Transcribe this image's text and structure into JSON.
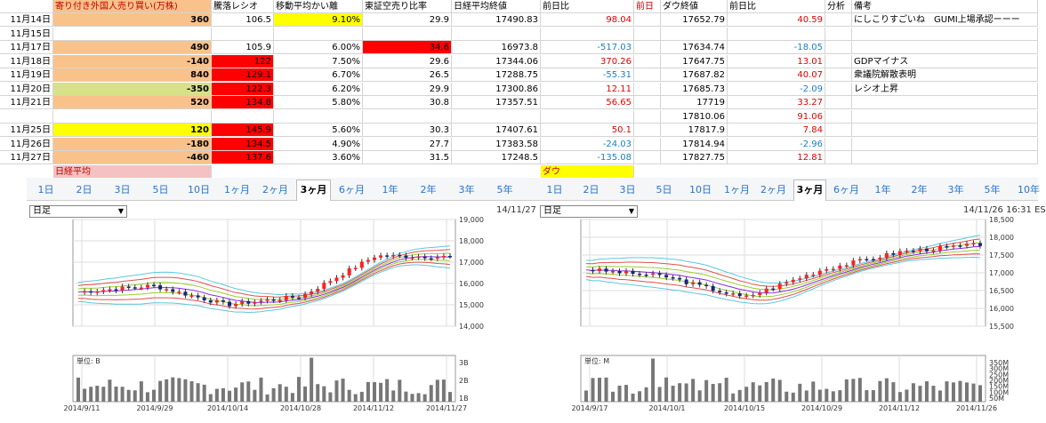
{
  "sheet": {
    "headers": {
      "col_a": "",
      "foreign": "寄り付き外国人売り買い(万株)",
      "ratio": "騰落レシオ",
      "ma": "移動平均かい離",
      "short": "東証空売り比率",
      "nikkei": "日経平均終値",
      "nikkei_diff": "前日比",
      "prev": "前日",
      "dow": "ダウ終値",
      "dow_diff": "前日比",
      "analysis": "分析",
      "notes": "備考"
    },
    "rows": [
      {
        "date": "11月14日",
        "foreign": "360",
        "ratio": "106.5",
        "ma": "9.10%",
        "short": "29.9",
        "nikkei": "17490.83",
        "nd": "98.04",
        "dow": "17652.79",
        "dd": "40.59",
        "note": "にしこりすごいね　GUMI上場承認ーーー"
      },
      {
        "date": "11月15日",
        "foreign": "",
        "ratio": "",
        "ma": "",
        "short": "",
        "nikkei": "",
        "nd": "",
        "dow": "",
        "dd": "",
        "note": ""
      },
      {
        "date": "11月17日",
        "foreign": "490",
        "ratio": "105.9",
        "ma": "6.00%",
        "short": "34.6",
        "nikkei": "16973.8",
        "nd": "-517.03",
        "dow": "17634.74",
        "dd": "-18.05",
        "note": ""
      },
      {
        "date": "11月18日",
        "foreign": "-140",
        "ratio": "122",
        "ma": "7.50%",
        "short": "29.6",
        "nikkei": "17344.06",
        "nd": "370.26",
        "dow": "17647.75",
        "dd": "13.01",
        "note": "GDPマイナス"
      },
      {
        "date": "11月19日",
        "foreign": "840",
        "ratio": "129.1",
        "ma": "6.70%",
        "short": "26.5",
        "nikkei": "17288.75",
        "nd": "-55.31",
        "dow": "17687.82",
        "dd": "40.07",
        "note": "衆議院解散表明"
      },
      {
        "date": "11月20日",
        "foreign": "-350",
        "ratio": "122.3",
        "ma": "6.20%",
        "short": "29.9",
        "nikkei": "17300.86",
        "nd": "12.11",
        "dow": "17685.73",
        "dd": "-2.09",
        "note": "レシオ上昇"
      },
      {
        "date": "11月21日",
        "foreign": "520",
        "ratio": "134.8",
        "ma": "5.80%",
        "short": "30.8",
        "nikkei": "17357.51",
        "nd": "56.65",
        "dow": "17719",
        "dd": "33.27",
        "note": ""
      },
      {
        "date": "",
        "foreign": "",
        "ratio": "",
        "ma": "",
        "short": "",
        "nikkei": "",
        "nd": "",
        "dow": "17810.06",
        "dd": "91.06",
        "note": ""
      },
      {
        "date": "11月25日",
        "foreign": "120",
        "ratio": "145.9",
        "ma": "5.60%",
        "short": "30.3",
        "nikkei": "17407.61",
        "nd": "50.1",
        "dow": "17817.9",
        "dd": "7.84",
        "note": ""
      },
      {
        "date": "11月26日",
        "foreign": "-180",
        "ratio": "134.5",
        "ma": "4.90%",
        "short": "27.7",
        "nikkei": "17383.58",
        "nd": "-24.03",
        "dow": "17814.94",
        "dd": "-2.96",
        "note": ""
      },
      {
        "date": "11月27日",
        "foreign": "-460",
        "ratio": "137.6",
        "ma": "3.60%",
        "short": "31.5",
        "nikkei": "17248.5",
        "nd": "-135.08",
        "dow": "17827.75",
        "dd": "12.81",
        "note": ""
      }
    ],
    "footer_left": "日経平均",
    "footer_right": "ダウ"
  },
  "colors": {
    "pink": "#f4c2c2",
    "orange": "#f9c28a",
    "yellow": "#ffff00",
    "red": "#ff0000",
    "green_yellow": "#d7e08a"
  },
  "left_chart": {
    "tabs": [
      "1日",
      "2日",
      "3日",
      "5日",
      "10日",
      "1ヶ月",
      "2ヶ月",
      "3ヶ月",
      "6ヶ月",
      "1年",
      "2年",
      "3年",
      "5年"
    ],
    "selected_tab": "3ヶ月",
    "period_select": "日足",
    "timestamp": "14/11/27",
    "price_ticks": [
      "19,000",
      "18,000",
      "17,000",
      "16,000",
      "15,000",
      "14,000"
    ],
    "volume_unit": "単位: B",
    "volume_ticks": [
      "3B",
      "2B",
      "1B"
    ],
    "date_ticks": [
      "2014/9/11",
      "2014/9/29",
      "2014/10/14",
      "2014/10/28",
      "2014/11/12",
      "2014/11/27"
    ]
  },
  "right_chart": {
    "tabs": [
      "1日",
      "2日",
      "3日",
      "5日",
      "10日",
      "1ヶ月",
      "2ヶ月",
      "3ヶ月",
      "6ヶ月",
      "1年",
      "2年",
      "3年",
      "5年",
      "10年"
    ],
    "selected_tab": "3ヶ月",
    "period_select": "日足",
    "timestamp": "14/11/26 16:31 ES",
    "price_ticks": [
      "18,500",
      "18,000",
      "17,500",
      "17,000",
      "16,500",
      "16,000",
      "15,500"
    ],
    "volume_unit": "単位: M",
    "volume_ticks": [
      "350M",
      "300M",
      "250M",
      "200M",
      "150M",
      "100M",
      "50M"
    ],
    "date_ticks": [
      "2014/9/17",
      "2014/10/1",
      "2014/10/15",
      "2014/10/29",
      "2014/11/12",
      "2014/11/26"
    ]
  },
  "chart_data": [
    {
      "type": "line",
      "title": "",
      "x": [
        "2014/9/11",
        "2014/9/29",
        "2014/10/14",
        "2014/10/28",
        "2014/11/12",
        "2014/11/27"
      ],
      "series": [
        {
          "values": [
            15600,
            15900,
            15000,
            15400,
            17300,
            17250
          ]
        }
      ],
      "ylim": [
        14000,
        19000
      ]
    },
    {
      "type": "line",
      "title": "",
      "x": [
        "2014/9/17",
        "2014/10/1",
        "2014/10/15",
        "2014/10/29",
        "2014/11/12",
        "2014/11/26"
      ],
      "series": [
        {
          "values": [
            17100,
            16900,
            16300,
            17100,
            17600,
            17800
          ]
        }
      ],
      "ylim": [
        15500,
        18500
      ]
    }
  ]
}
